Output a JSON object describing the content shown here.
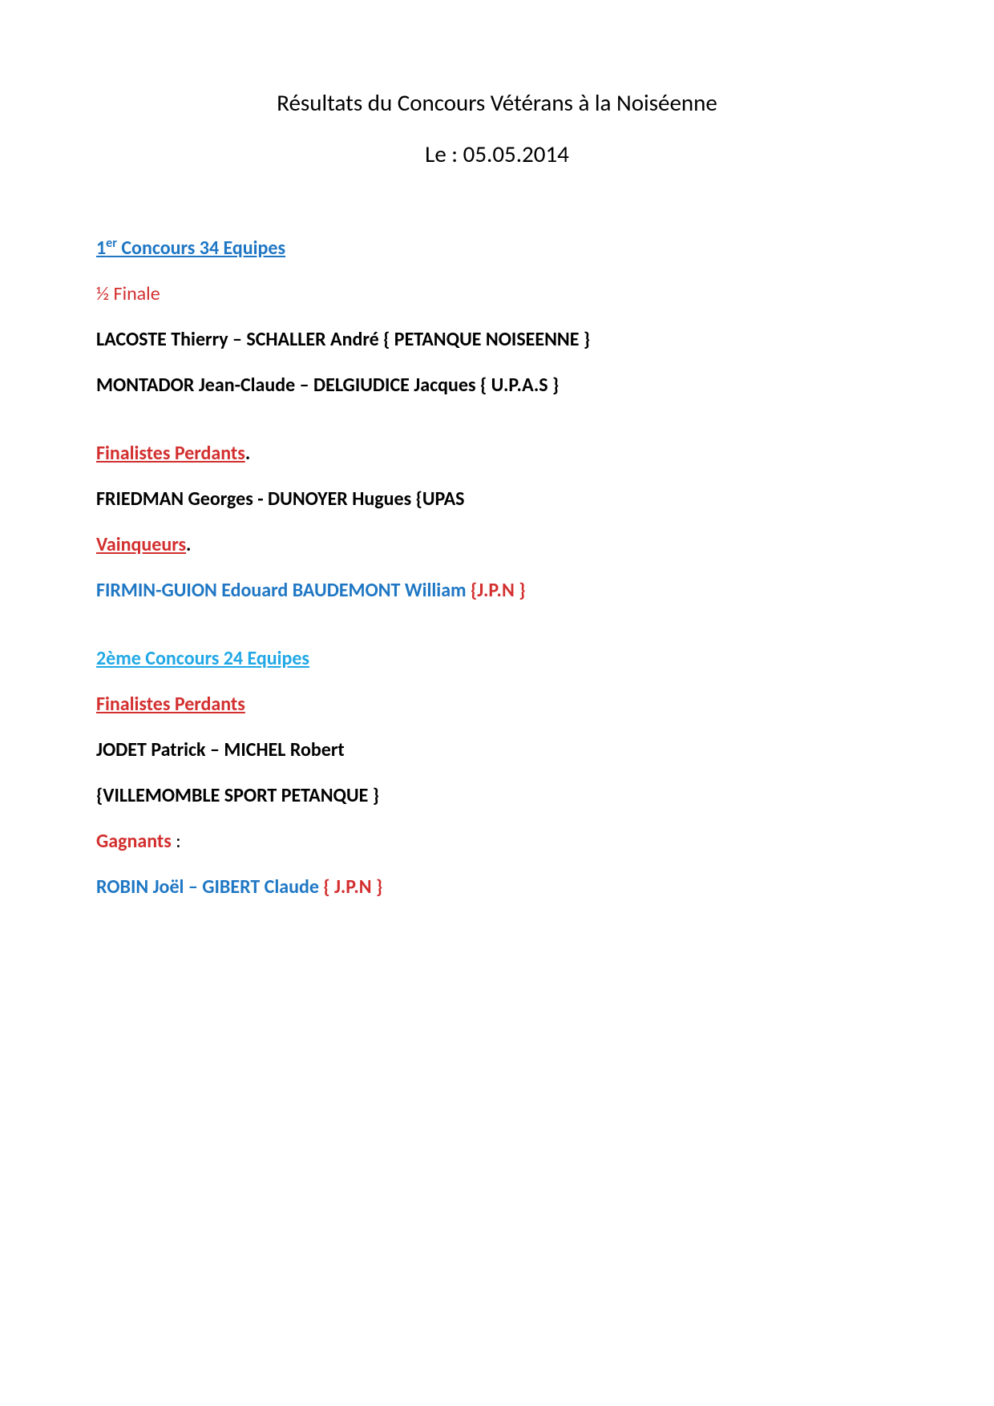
{
  "document": {
    "title": "Résultats du Concours Vétérans à la Noiséenne",
    "date": "Le : 05.05.2014"
  },
  "sections": [
    {
      "header_prefix": "1",
      "header_sup": "er",
      "header_rest": " Concours 34 Equipes",
      "header_color": "#1f77c4",
      "groups": [
        {
          "label": "½ Finale",
          "label_style": "subheader-red",
          "entries": [
            {
              "text": "LACOSTE Thierry – SCHALLER André { PETANQUE NOISEENNE }",
              "color": "#000000"
            },
            {
              "text": "MONTADOR Jean-Claude – DELGIUDICE Jacques { U.P.A.S }",
              "color": "#000000"
            }
          ]
        },
        {
          "label": "Finalistes Perdants",
          "label_style": "subheader-red-bold-u",
          "label_suffix": ".",
          "entries": [
            {
              "text": "FRIEDMAN Georges - DUNOYER Hugues  {UPAS",
              "color": "#000000"
            }
          ]
        },
        {
          "label": "Vainqueurs",
          "label_style": "subheader-red-bold-u",
          "label_suffix": ".",
          "entries": [
            {
              "text": "FIRMIN-GUION Edouard BAUDEMONT William ",
              "color": "#1f77c4",
              "suffix": "{J.P.N }",
              "suffix_color": "#d32f2f"
            }
          ]
        }
      ]
    },
    {
      "header_text": "2ème Concours 24 Equipes",
      "header_color": "#21a8e6",
      "groups": [
        {
          "label": "Finalistes Perdants",
          "label_style": "subheader-red-bold-u",
          "entries": [
            {
              "text": "JODET Patrick – MICHEL Robert",
              "color": "#000000"
            },
            {
              "text": "{VILLEMOMBLE  SPORT PETANQUE }",
              "color": "#000000"
            }
          ]
        },
        {
          "label": "Gagnants",
          "label_style": "red-bold",
          "label_suffix_colon": " :",
          "entries": [
            {
              "text": "ROBIN Joël – GIBERT Claude ",
              "color": "#1f77c4",
              "suffix": "{ J.P.N }",
              "suffix_color": "#d32f2f"
            }
          ]
        }
      ]
    }
  ]
}
